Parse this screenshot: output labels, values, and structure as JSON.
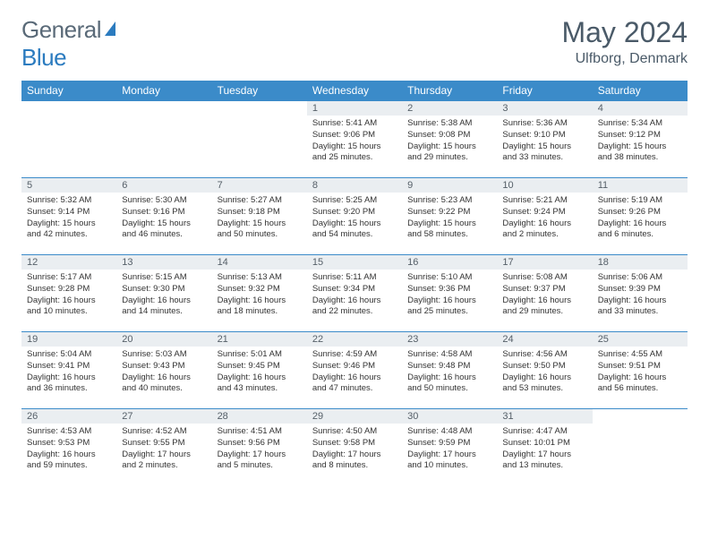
{
  "brand": {
    "part1": "General",
    "part2": "Blue"
  },
  "title": "May 2024",
  "location": "Ulfborg, Denmark",
  "colors": {
    "header_bg": "#3b8bc9",
    "header_fg": "#ffffff",
    "daynum_bg": "#eaeef1",
    "border": "#3b8bc9",
    "logo_gray": "#5a6a78",
    "logo_blue": "#2b7bbf"
  },
  "weekdays": [
    "Sunday",
    "Monday",
    "Tuesday",
    "Wednesday",
    "Thursday",
    "Friday",
    "Saturday"
  ],
  "grid": [
    [
      null,
      null,
      null,
      {
        "n": "1",
        "sr": "5:41 AM",
        "ss": "9:06 PM",
        "dl": "15 hours and 25 minutes."
      },
      {
        "n": "2",
        "sr": "5:38 AM",
        "ss": "9:08 PM",
        "dl": "15 hours and 29 minutes."
      },
      {
        "n": "3",
        "sr": "5:36 AM",
        "ss": "9:10 PM",
        "dl": "15 hours and 33 minutes."
      },
      {
        "n": "4",
        "sr": "5:34 AM",
        "ss": "9:12 PM",
        "dl": "15 hours and 38 minutes."
      }
    ],
    [
      {
        "n": "5",
        "sr": "5:32 AM",
        "ss": "9:14 PM",
        "dl": "15 hours and 42 minutes."
      },
      {
        "n": "6",
        "sr": "5:30 AM",
        "ss": "9:16 PM",
        "dl": "15 hours and 46 minutes."
      },
      {
        "n": "7",
        "sr": "5:27 AM",
        "ss": "9:18 PM",
        "dl": "15 hours and 50 minutes."
      },
      {
        "n": "8",
        "sr": "5:25 AM",
        "ss": "9:20 PM",
        "dl": "15 hours and 54 minutes."
      },
      {
        "n": "9",
        "sr": "5:23 AM",
        "ss": "9:22 PM",
        "dl": "15 hours and 58 minutes."
      },
      {
        "n": "10",
        "sr": "5:21 AM",
        "ss": "9:24 PM",
        "dl": "16 hours and 2 minutes."
      },
      {
        "n": "11",
        "sr": "5:19 AM",
        "ss": "9:26 PM",
        "dl": "16 hours and 6 minutes."
      }
    ],
    [
      {
        "n": "12",
        "sr": "5:17 AM",
        "ss": "9:28 PM",
        "dl": "16 hours and 10 minutes."
      },
      {
        "n": "13",
        "sr": "5:15 AM",
        "ss": "9:30 PM",
        "dl": "16 hours and 14 minutes."
      },
      {
        "n": "14",
        "sr": "5:13 AM",
        "ss": "9:32 PM",
        "dl": "16 hours and 18 minutes."
      },
      {
        "n": "15",
        "sr": "5:11 AM",
        "ss": "9:34 PM",
        "dl": "16 hours and 22 minutes."
      },
      {
        "n": "16",
        "sr": "5:10 AM",
        "ss": "9:36 PM",
        "dl": "16 hours and 25 minutes."
      },
      {
        "n": "17",
        "sr": "5:08 AM",
        "ss": "9:37 PM",
        "dl": "16 hours and 29 minutes."
      },
      {
        "n": "18",
        "sr": "5:06 AM",
        "ss": "9:39 PM",
        "dl": "16 hours and 33 minutes."
      }
    ],
    [
      {
        "n": "19",
        "sr": "5:04 AM",
        "ss": "9:41 PM",
        "dl": "16 hours and 36 minutes."
      },
      {
        "n": "20",
        "sr": "5:03 AM",
        "ss": "9:43 PM",
        "dl": "16 hours and 40 minutes."
      },
      {
        "n": "21",
        "sr": "5:01 AM",
        "ss": "9:45 PM",
        "dl": "16 hours and 43 minutes."
      },
      {
        "n": "22",
        "sr": "4:59 AM",
        "ss": "9:46 PM",
        "dl": "16 hours and 47 minutes."
      },
      {
        "n": "23",
        "sr": "4:58 AM",
        "ss": "9:48 PM",
        "dl": "16 hours and 50 minutes."
      },
      {
        "n": "24",
        "sr": "4:56 AM",
        "ss": "9:50 PM",
        "dl": "16 hours and 53 minutes."
      },
      {
        "n": "25",
        "sr": "4:55 AM",
        "ss": "9:51 PM",
        "dl": "16 hours and 56 minutes."
      }
    ],
    [
      {
        "n": "26",
        "sr": "4:53 AM",
        "ss": "9:53 PM",
        "dl": "16 hours and 59 minutes."
      },
      {
        "n": "27",
        "sr": "4:52 AM",
        "ss": "9:55 PM",
        "dl": "17 hours and 2 minutes."
      },
      {
        "n": "28",
        "sr": "4:51 AM",
        "ss": "9:56 PM",
        "dl": "17 hours and 5 minutes."
      },
      {
        "n": "29",
        "sr": "4:50 AM",
        "ss": "9:58 PM",
        "dl": "17 hours and 8 minutes."
      },
      {
        "n": "30",
        "sr": "4:48 AM",
        "ss": "9:59 PM",
        "dl": "17 hours and 10 minutes."
      },
      {
        "n": "31",
        "sr": "4:47 AM",
        "ss": "10:01 PM",
        "dl": "17 hours and 13 minutes."
      },
      null
    ]
  ],
  "labels": {
    "sunrise": "Sunrise:",
    "sunset": "Sunset:",
    "daylight": "Daylight:"
  }
}
